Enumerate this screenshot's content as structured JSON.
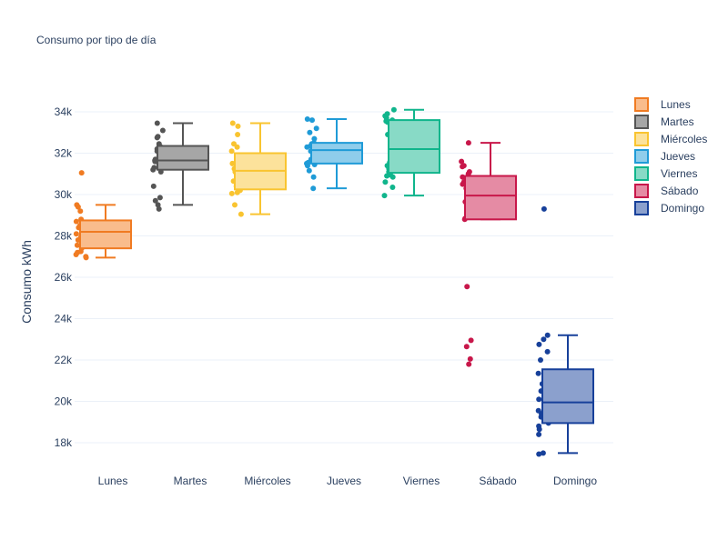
{
  "chart_data": {
    "type": "box",
    "title": "Consumo por tipo de día",
    "xlabel": "",
    "ylabel": "Consumo kWh",
    "ylim": [
      16700,
      35400
    ],
    "y_ticks": [
      18000,
      20000,
      22000,
      24000,
      26000,
      28000,
      30000,
      32000,
      34000
    ],
    "y_tick_labels": [
      "18k",
      "20k",
      "22k",
      "24k",
      "26k",
      "28k",
      "30k",
      "32k",
      "34k"
    ],
    "grid": true,
    "legend_position": "top-right",
    "categories": [
      "Lunes",
      "Martes",
      "Miércoles",
      "Jueves",
      "Viernes",
      "Sábado",
      "Domingo"
    ],
    "series": [
      {
        "name": "Lunes",
        "color": "#f07b22",
        "fill": "#f9bc8c",
        "min": 26950,
        "q1": 27400,
        "median": 28200,
        "q3": 28750,
        "max": 29500,
        "points": [
          31050,
          29500,
          29400,
          29200,
          28800,
          28700,
          28650,
          28600,
          28500,
          28400,
          28300,
          28200,
          28100,
          27950,
          27800,
          27700,
          27550,
          27400,
          27250,
          27200,
          27100,
          27000,
          26950
        ]
      },
      {
        "name": "Martes",
        "color": "#555555",
        "fill": "#a6a6a6",
        "min": 29500,
        "q1": 31200,
        "median": 31650,
        "q3": 32350,
        "max": 33450,
        "points": [
          33450,
          33100,
          32800,
          32750,
          32450,
          32350,
          32300,
          32200,
          32100,
          31950,
          31800,
          31700,
          31650,
          31600,
          31500,
          31300,
          31200,
          31100,
          30400,
          29850,
          29700,
          29500,
          29300
        ]
      },
      {
        "name": "Miércoles",
        "color": "#f9c430",
        "fill": "#fce29b",
        "min": 29050,
        "q1": 30250,
        "median": 31150,
        "q3": 32000,
        "max": 33450,
        "points": [
          33450,
          33300,
          32900,
          32450,
          32300,
          32100,
          31750,
          31500,
          31250,
          31100,
          30900,
          30800,
          30650,
          30600,
          30500,
          30400,
          30300,
          30200,
          30100,
          30050,
          29500,
          29050
        ]
      },
      {
        "name": "Jueves",
        "color": "#1f9bd7",
        "fill": "#8fcdeb",
        "min": 30300,
        "q1": 31500,
        "median": 32150,
        "q3": 32500,
        "max": 33650,
        "points": [
          33650,
          33600,
          33200,
          33000,
          32700,
          32500,
          32450,
          32400,
          32350,
          32300,
          32250,
          32100,
          31700,
          31650,
          31550,
          31500,
          31450,
          31400,
          31150,
          30850,
          30300
        ]
      },
      {
        "name": "Viernes",
        "color": "#10b58c",
        "fill": "#88dac6",
        "min": 29950,
        "q1": 31050,
        "median": 32200,
        "q3": 33600,
        "max": 34100,
        "points": [
          34100,
          33900,
          33800,
          33700,
          33600,
          33550,
          33500,
          33200,
          32900,
          32450,
          31950,
          31800,
          31550,
          31400,
          31250,
          31100,
          30950,
          30900,
          30850,
          30600,
          30350,
          29950
        ]
      },
      {
        "name": "Sábado",
        "color": "#c8174a",
        "fill": "#e58ba4",
        "min": 28800,
        "q1": 28800,
        "median": 29950,
        "q3": 30900,
        "max": 32500,
        "points": [
          32500,
          31600,
          31400,
          31350,
          31100,
          31000,
          30850,
          30700,
          30600,
          30500,
          30400,
          30300,
          30050,
          29950,
          29900,
          29800,
          29650,
          28850,
          28800,
          25550,
          22950,
          22650,
          22050,
          21800
        ]
      },
      {
        "name": "Domingo",
        "color": "#17409a",
        "fill": "#8ba0cd",
        "min": 17500,
        "q1": 18950,
        "median": 19950,
        "q3": 21550,
        "max": 23200,
        "points": [
          29300,
          23200,
          23000,
          22750,
          22400,
          22000,
          21350,
          20850,
          20500,
          20400,
          20200,
          20100,
          20050,
          19900,
          19550,
          19400,
          19250,
          19050,
          18950,
          18800,
          18650,
          18400,
          17500,
          17450
        ]
      }
    ]
  }
}
